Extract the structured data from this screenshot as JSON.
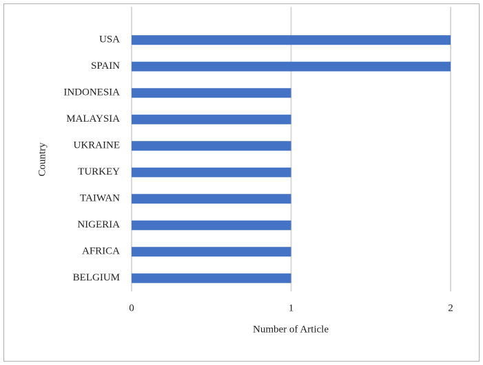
{
  "chart_data": {
    "type": "bar",
    "orientation": "horizontal",
    "x_label": "Number of Article",
    "y_label": "Country",
    "categories": [
      "USA",
      "SPAIN",
      "INDONESIA",
      "MALAYSIA",
      "UKRAINE",
      "TURKEY",
      "TAIWAN",
      "NIGERIA",
      "AFRICA",
      "BELGIUM"
    ],
    "values": [
      2,
      2,
      1,
      1,
      1,
      1,
      1,
      1,
      1,
      1
    ],
    "color": "#4472c4",
    "xlim": [
      0,
      2
    ],
    "xticks": [
      0,
      1,
      2
    ],
    "grid": true
  }
}
